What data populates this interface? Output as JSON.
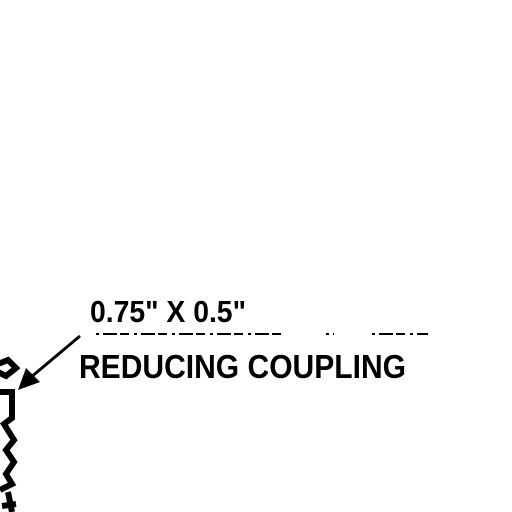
{
  "callout": {
    "size_label": "0.75\" X 0.5\"",
    "part_label": "REDUCING COUPLING"
  },
  "colors": {
    "ink": "#000000",
    "background": "#ffffff"
  }
}
